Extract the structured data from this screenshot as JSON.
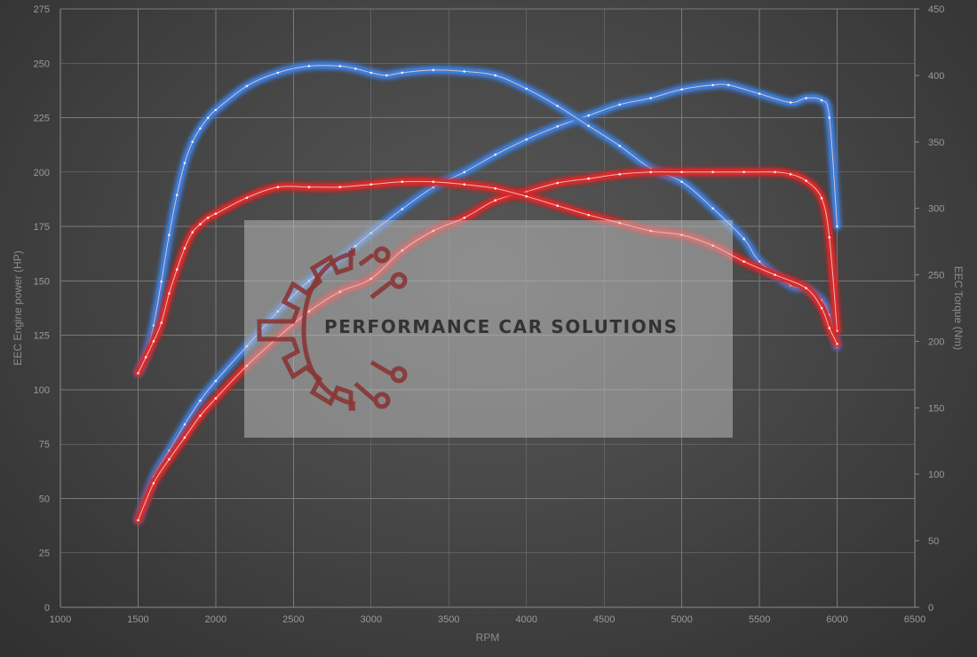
{
  "chart_data": {
    "type": "line",
    "xlabel": "RPM",
    "ylabel_left": "EEC Engine power (HP)",
    "ylabel_right": "EEC Torque (Nm)",
    "xlim": [
      1000,
      6500
    ],
    "xticks": [
      1000,
      1500,
      2000,
      2500,
      3000,
      3500,
      4000,
      4500,
      5000,
      5500,
      6000,
      6500
    ],
    "ylim_left": [
      0,
      275
    ],
    "yticks_left": [
      0,
      25,
      50,
      75,
      100,
      125,
      150,
      175,
      200,
      225,
      250,
      275
    ],
    "ylim_right": [
      0,
      450
    ],
    "yticks_right": [
      0,
      50,
      100,
      150,
      200,
      250,
      300,
      350,
      400,
      450
    ],
    "grid": true,
    "colors": {
      "tuned": "#3d7bd4",
      "stock": "#d42a2a"
    },
    "series": [
      {
        "color_key": "tuned",
        "axis": "left",
        "x": [
          1500,
          1600,
          1700,
          1800,
          1900,
          2000,
          2200,
          2400,
          2600,
          2800,
          2900,
          3000,
          3200,
          3400,
          3600,
          3800,
          4000,
          4200,
          4400,
          4600,
          4800,
          5000,
          5200,
          5300,
          5500,
          5700,
          5800,
          5900,
          5950,
          6000
        ],
        "y": [
          40,
          60,
          72,
          84,
          95,
          104,
          120,
          136,
          150,
          160,
          166,
          172,
          183,
          193,
          200,
          208,
          215,
          221,
          226,
          231,
          234,
          238,
          240,
          240,
          236,
          232,
          234,
          233,
          225,
          175
        ]
      },
      {
        "color_key": "tuned",
        "axis": "right",
        "x": [
          1500,
          1550,
          1600,
          1650,
          1700,
          1750,
          1800,
          1850,
          1900,
          1950,
          2000,
          2200,
          2400,
          2600,
          2800,
          2900,
          3000,
          3100,
          3200,
          3400,
          3600,
          3800,
          4000,
          4200,
          4400,
          4600,
          4800,
          5000,
          5200,
          5400,
          5500,
          5700,
          5800,
          5900,
          5950,
          6000
        ],
        "y": [
          176,
          190,
          212,
          245,
          280,
          310,
          334,
          350,
          360,
          368,
          374,
          392,
          402,
          407,
          407,
          405,
          402,
          400,
          402,
          404,
          403,
          400,
          390,
          377,
          362,
          347,
          330,
          320,
          300,
          277,
          260,
          242,
          240,
          231,
          220,
          196
        ]
      },
      {
        "color_key": "stock",
        "axis": "left",
        "x": [
          1500,
          1600,
          1700,
          1800,
          1900,
          2000,
          2200,
          2400,
          2600,
          2800,
          3000,
          3200,
          3400,
          3600,
          3800,
          4000,
          4200,
          4400,
          4600,
          4800,
          5000,
          5200,
          5400,
          5600,
          5700,
          5800,
          5900,
          5950,
          6000
        ],
        "y": [
          40,
          57,
          68,
          78,
          88,
          96,
          111,
          124,
          136,
          145,
          151,
          164,
          173,
          179,
          187,
          191,
          195,
          197,
          199,
          200,
          200,
          200,
          200,
          200,
          199,
          196,
          188,
          170,
          127
        ]
      },
      {
        "color_key": "stock",
        "axis": "right",
        "x": [
          1500,
          1550,
          1600,
          1650,
          1700,
          1750,
          1800,
          1850,
          1900,
          1950,
          2000,
          2200,
          2400,
          2600,
          2800,
          3000,
          3200,
          3400,
          3600,
          3800,
          4000,
          4200,
          4400,
          4600,
          4800,
          5000,
          5200,
          5400,
          5600,
          5800,
          5900,
          5950,
          6000
        ],
        "y": [
          176,
          188,
          200,
          214,
          236,
          254,
          270,
          282,
          288,
          293,
          296,
          308,
          316,
          316,
          316,
          318,
          320,
          320,
          318,
          315,
          309,
          302,
          295,
          289,
          283,
          280,
          272,
          260,
          250,
          240,
          225,
          210,
          198
        ]
      }
    ],
    "watermark": {
      "text": "PERFORMANCE CAR SOLUTIONS"
    }
  }
}
